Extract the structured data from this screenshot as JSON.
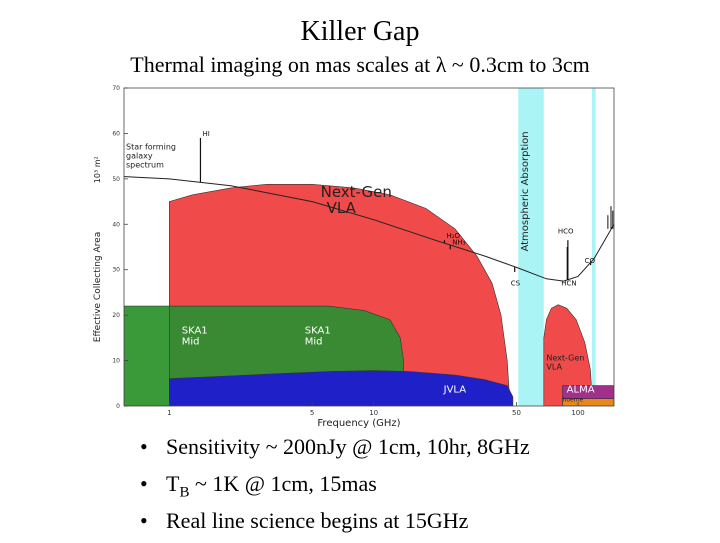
{
  "slide": {
    "title": "Killer Gap",
    "subtitle": "Thermal imaging on mas scales at λ ~ 0.3cm  to 3cm",
    "bullets": [
      {
        "text": "Sensitivity ~ 200nJy @ 1cm, 10hr, 8GHz"
      },
      {
        "prefix": "T",
        "sub": "B",
        "rest": " ~ 1K @ 1cm, 15mas"
      },
      {
        "text": "Real line science begins at 15GHz"
      }
    ]
  },
  "chart_data": {
    "type": "area",
    "xscale": "log",
    "xlim": [
      0.6,
      150
    ],
    "ylim": [
      0,
      70
    ],
    "xlabel": "Frequency (GHz)",
    "ylabel": "Effective Collecting Area",
    "yunit": "10³ m²",
    "xticks": [
      1,
      5,
      10,
      50,
      100
    ],
    "yticks": [
      0,
      10,
      20,
      30,
      40,
      50,
      60,
      70
    ],
    "regions": [
      {
        "name": "SKA1 Mid",
        "label": "SKA1\nMid",
        "color": "#3a9a3a",
        "points": [
          [
            0.6,
            0
          ],
          [
            0.6,
            22
          ],
          [
            1.0,
            22
          ],
          [
            1.0,
            0
          ]
        ]
      },
      {
        "name": "Next-Gen VLA",
        "label": "Next-Gen\nVLA",
        "color": "#f04a4a",
        "points": [
          [
            1.0,
            0
          ],
          [
            1.0,
            45
          ],
          [
            1.3,
            46.5
          ],
          [
            2,
            48
          ],
          [
            3,
            48.8
          ],
          [
            5,
            48.8
          ],
          [
            8,
            48
          ],
          [
            12,
            46.5
          ],
          [
            18,
            43.5
          ],
          [
            25,
            39
          ],
          [
            32,
            33
          ],
          [
            38,
            27
          ],
          [
            42,
            20
          ],
          [
            45,
            10
          ],
          [
            46.5,
            0
          ]
        ]
      },
      {
        "name": "SKA1 Mid",
        "label": "SKA1\nMid",
        "color": "#3a8a34",
        "points": [
          [
            1.0,
            0
          ],
          [
            1.0,
            22
          ],
          [
            6,
            22
          ],
          [
            9,
            21
          ],
          [
            12,
            19
          ],
          [
            13.5,
            15
          ],
          [
            14,
            10
          ],
          [
            14,
            0
          ]
        ]
      },
      {
        "name": "JVLA",
        "label": "JVLA",
        "color": "#2020c8",
        "points": [
          [
            1.0,
            0
          ],
          [
            1.0,
            6
          ],
          [
            3,
            7
          ],
          [
            6,
            7.6
          ],
          [
            10,
            7.8
          ],
          [
            15,
            7.6
          ],
          [
            25,
            6.8
          ],
          [
            35,
            5.8
          ],
          [
            45,
            4.5
          ],
          [
            48,
            2
          ],
          [
            48,
            0
          ]
        ]
      },
      {
        "name": "Next-Gen VLA",
        "label": "Next-Gen\nVLA",
        "color": "#f04a4a",
        "points": [
          [
            68,
            0
          ],
          [
            68,
            15
          ],
          [
            70,
            19
          ],
          [
            74,
            21.5
          ],
          [
            80,
            22.3
          ],
          [
            88,
            21.5
          ],
          [
            98,
            19
          ],
          [
            108,
            14
          ],
          [
            115,
            8
          ],
          [
            118,
            0
          ]
        ]
      },
      {
        "name": "ALMA",
        "label": "ALMA",
        "color": "#a0308a",
        "points": [
          [
            84,
            0
          ],
          [
            84,
            4.5
          ],
          [
            150,
            4.5
          ],
          [
            150,
            0
          ]
        ]
      },
      {
        "name": "hoeme",
        "label": "hoeme",
        "color": "#e8881c",
        "points": [
          [
            84,
            0
          ],
          [
            84,
            1.6
          ],
          [
            150,
            1.6
          ],
          [
            150,
            0
          ]
        ]
      }
    ],
    "atmospheric_bands": {
      "label": "Atmospheric Absorption",
      "color": "#aaf4f6",
      "ranges": [
        [
          51,
          68
        ],
        [
          117,
          122
        ],
        [
          180,
          195
        ]
      ]
    },
    "sensitivity_curve": {
      "label": "Star forming galaxy spectrum",
      "color": "#222222",
      "points": [
        [
          0.6,
          50.5
        ],
        [
          1.0,
          50
        ],
        [
          2,
          48.5
        ],
        [
          5,
          45
        ],
        [
          10,
          41
        ],
        [
          20,
          36.5
        ],
        [
          35,
          33
        ],
        [
          50,
          30.5
        ],
        [
          70,
          28
        ],
        [
          85,
          27.5
        ],
        [
          100,
          28.5
        ],
        [
          120,
          32.5
        ],
        [
          150,
          40
        ]
      ]
    },
    "spectral_lines": [
      {
        "name": "HI",
        "x": 1.42,
        "top": 59,
        "label": "HI"
      },
      {
        "name": "H2O",
        "x": 22.2,
        "top": 36.5,
        "label": "H₂O"
      },
      {
        "name": "NH3",
        "x": 23.7,
        "top": 34.5,
        "label": "NH₃"
      },
      {
        "name": "CS",
        "x": 49,
        "top": 29.5,
        "label": "CS"
      },
      {
        "name": "HCN",
        "x": 88.6,
        "top": 35,
        "label": "HCN"
      },
      {
        "name": "HCO",
        "x": 89.2,
        "top": 36.5,
        "label": "HCO"
      },
      {
        "name": "CO",
        "x": 115.3,
        "top": 31,
        "label": "CO"
      }
    ]
  }
}
